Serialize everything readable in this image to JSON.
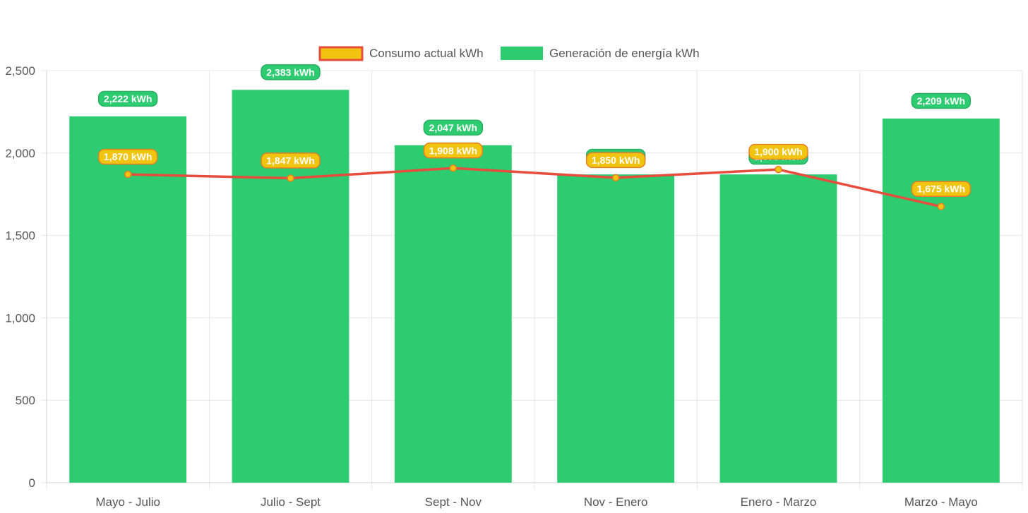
{
  "chart_data": {
    "type": "bar",
    "categories": [
      "Mayo - Julio",
      "Julio - Sept",
      "Sept - Nov",
      "Nov - Enero",
      "Enero - Marzo",
      "Marzo - Mayo"
    ],
    "series": [
      {
        "name": "Generación de energía kWh",
        "type": "bar",
        "color": "#2ecc71",
        "values": [
          2222,
          2383,
          2047,
          1870,
          1870,
          2209
        ],
        "labels": [
          "2,222 kWh",
          "2,383 kWh",
          "2,047 kWh",
          "1,870 kWh",
          "1,870 kWh",
          "2,209 kWh"
        ]
      },
      {
        "name": "Consumo actual kWh",
        "type": "line",
        "color": "#e74c3c",
        "point_color": "#f1c40f",
        "values": [
          1870,
          1847,
          1908,
          1850,
          1900,
          1675
        ],
        "labels": [
          "1,870 kWh",
          "1,847 kWh",
          "1,908 kWh",
          "1,850 kWh",
          "1,900 kWh",
          "1,675 kWh"
        ]
      }
    ],
    "legend": [
      "Consumo actual kWh",
      "Generación de energía kWh"
    ],
    "legend_position": "top",
    "ylim": [
      0,
      2500
    ],
    "yticks": [
      0,
      500,
      1000,
      1500,
      2000,
      2500
    ],
    "ytick_labels": [
      "0",
      "500",
      "1,000",
      "1,500",
      "2,000",
      "2,500"
    ],
    "grid": true
  }
}
